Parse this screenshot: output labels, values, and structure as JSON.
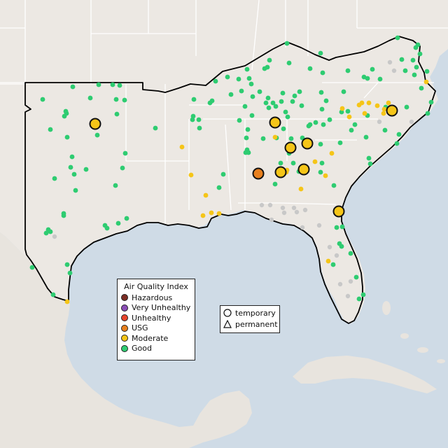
{
  "map": {
    "land_color": "#ece8e3",
    "water_color": "#cfdbe6",
    "border_color": "#ffffff",
    "region_outline_color": "#000000",
    "markers": {
      "small_good": [
        [
          171,
          122
        ],
        [
          141,
          121
        ],
        [
          161,
          121
        ],
        [
          104,
          124
        ],
        [
          61,
          142
        ],
        [
          94,
          159
        ],
        [
          95,
          162
        ],
        [
          92,
          166
        ],
        [
          129,
          140
        ],
        [
          166,
          142
        ],
        [
          178,
          143
        ],
        [
          167,
          163
        ],
        [
          72,
          185
        ],
        [
          96,
          196
        ],
        [
          139,
          193
        ],
        [
          222,
          183
        ],
        [
          179,
          219
        ],
        [
          103,
          224
        ],
        [
          101,
          239
        ],
        [
          123,
          242
        ],
        [
          106,
          249
        ],
        [
          175,
          240
        ],
        [
          78,
          255
        ],
        [
          108,
          272
        ],
        [
          165,
          265
        ],
        [
          91,
          305
        ],
        [
          91,
          308
        ],
        [
          181,
          312
        ],
        [
          169,
          319
        ],
        [
          150,
          322
        ],
        [
          153,
          326
        ],
        [
          69,
          328
        ],
        [
          72,
          331
        ],
        [
          66,
          333
        ],
        [
          46,
          382
        ],
        [
          96,
          378
        ],
        [
          100,
          390
        ],
        [
          76,
          421
        ],
        [
          410,
          62
        ],
        [
          458,
          76
        ],
        [
          385,
          86
        ],
        [
          382,
          96
        ],
        [
          378,
          98
        ],
        [
          413,
          90
        ],
        [
          443,
          98
        ],
        [
          353,
          99
        ],
        [
          325,
          110
        ],
        [
          308,
          116
        ],
        [
          461,
          104
        ],
        [
          497,
          101
        ],
        [
          520,
          110
        ],
        [
          543,
          113
        ],
        [
          532,
          99
        ],
        [
          568,
          54
        ],
        [
          594,
          68
        ],
        [
          597,
          64
        ],
        [
          600,
          77
        ],
        [
          590,
          86
        ],
        [
          610,
          102
        ],
        [
          592,
          107
        ],
        [
          579,
          101
        ],
        [
          345,
          130
        ],
        [
          330,
          135
        ],
        [
          361,
          138
        ],
        [
          371,
          131
        ],
        [
          404,
          133
        ],
        [
          421,
          137
        ],
        [
          428,
          131
        ],
        [
          418,
          145
        ],
        [
          431,
          151
        ],
        [
          459,
          132
        ],
        [
          491,
          131
        ],
        [
          466,
          144
        ],
        [
          460,
          156
        ],
        [
          488,
          160
        ],
        [
          471,
          171
        ],
        [
          451,
          175
        ],
        [
          443,
          178
        ],
        [
          390,
          147
        ],
        [
          380,
          147
        ],
        [
          394,
          152
        ],
        [
          408,
          160
        ],
        [
          411,
          167
        ],
        [
          402,
          145
        ],
        [
          350,
          152
        ],
        [
          360,
          165
        ],
        [
          383,
          140
        ],
        [
          384,
          154
        ],
        [
          359,
          120
        ],
        [
          356,
          112
        ],
        [
          341,
          113
        ],
        [
          303,
          144
        ],
        [
          300,
          147
        ],
        [
          277,
          142
        ],
        [
          276,
          166
        ],
        [
          275,
          171
        ],
        [
          284,
          171
        ],
        [
          285,
          183
        ],
        [
          342,
          172
        ],
        [
          354,
          185
        ],
        [
          352,
          197
        ],
        [
          353,
          214
        ],
        [
          351,
          218
        ],
        [
          355,
          218
        ],
        [
          376,
          198
        ],
        [
          405,
          184
        ],
        [
          416,
          198
        ],
        [
          432,
          197
        ],
        [
          441,
          180
        ],
        [
          462,
          178
        ],
        [
          497,
          159
        ],
        [
          507,
          178
        ],
        [
          525,
          165
        ],
        [
          502,
          186
        ],
        [
          523,
          196
        ],
        [
          527,
          226
        ],
        [
          529,
          234
        ],
        [
          581,
          153
        ],
        [
          570,
          192
        ],
        [
          567,
          205
        ],
        [
          602,
          126
        ],
        [
          616,
          146
        ],
        [
          611,
          162
        ],
        [
          486,
          204
        ],
        [
          458,
          206
        ],
        [
          460,
          233
        ],
        [
          395,
          197
        ],
        [
          313,
          268
        ],
        [
          319,
          249
        ],
        [
          458,
          246
        ],
        [
          477,
          265
        ],
        [
          393,
          263
        ],
        [
          525,
          112
        ],
        [
          574,
          85
        ],
        [
          595,
          96
        ],
        [
          550,
          186
        ],
        [
          551,
          153
        ],
        [
          413,
          219
        ],
        [
          419,
          233
        ],
        [
          427,
          245
        ],
        [
          401,
          233
        ],
        [
          481,
          325
        ],
        [
          489,
          324
        ],
        [
          485,
          348
        ],
        [
          488,
          352
        ],
        [
          501,
          362
        ],
        [
          513,
          427
        ],
        [
          519,
          421
        ],
        [
          476,
          378
        ],
        [
          509,
          396
        ]
      ],
      "small_moderate": [
        [
          517,
          147
        ],
        [
          513,
          150
        ],
        [
          527,
          147
        ],
        [
          539,
          151
        ],
        [
          555,
          147
        ],
        [
          549,
          156
        ],
        [
          521,
          162
        ],
        [
          548,
          162
        ],
        [
          489,
          155
        ],
        [
          499,
          167
        ],
        [
          609,
          117
        ],
        [
          260,
          210
        ],
        [
          273,
          250
        ],
        [
          294,
          279
        ],
        [
          302,
          304
        ],
        [
          313,
          305
        ],
        [
          290,
          308
        ],
        [
          393,
          196
        ],
        [
          430,
          270
        ],
        [
          450,
          231
        ],
        [
          465,
          251
        ],
        [
          474,
          219
        ],
        [
          410,
          243
        ],
        [
          409,
          246
        ],
        [
          469,
          373
        ],
        [
          96,
          431
        ]
      ],
      "small_unknown": [
        [
          542,
          174
        ],
        [
          588,
          174
        ],
        [
          557,
          89
        ],
        [
          374,
          293
        ],
        [
          386,
          293
        ],
        [
          404,
          297
        ],
        [
          420,
          297
        ],
        [
          406,
          304
        ],
        [
          424,
          303
        ],
        [
          436,
          300
        ],
        [
          388,
          314
        ],
        [
          432,
          325
        ],
        [
          456,
          322
        ],
        [
          471,
          353
        ],
        [
          481,
          365
        ],
        [
          486,
          406
        ],
        [
          501,
          402
        ],
        [
          497,
          423
        ],
        [
          78,
          338
        ],
        [
          563,
          101
        ]
      ],
      "large_moderate": [
        [
          136,
          177
        ],
        [
          393,
          175
        ],
        [
          415,
          211
        ],
        [
          439,
          205
        ],
        [
          401,
          246
        ],
        [
          434,
          242
        ],
        [
          560,
          158
        ],
        [
          484,
          302
        ]
      ],
      "large_usg": [
        [
          369,
          248
        ]
      ]
    }
  },
  "aqi_legend": {
    "title": "Air Quality Index",
    "categories": [
      {
        "label": "Hazardous",
        "color": "#7b2d24"
      },
      {
        "label": "Very Unhealthy",
        "color": "#8b4eb6"
      },
      {
        "label": "Unhealthy",
        "color": "#e8452c"
      },
      {
        "label": "USG",
        "color": "#e8801e"
      },
      {
        "label": "Moderate",
        "color": "#f5c518"
      },
      {
        "label": "Good",
        "color": "#2ecc71"
      }
    ]
  },
  "site_legend": {
    "temporary": "temporary",
    "permanent": "permanent"
  }
}
